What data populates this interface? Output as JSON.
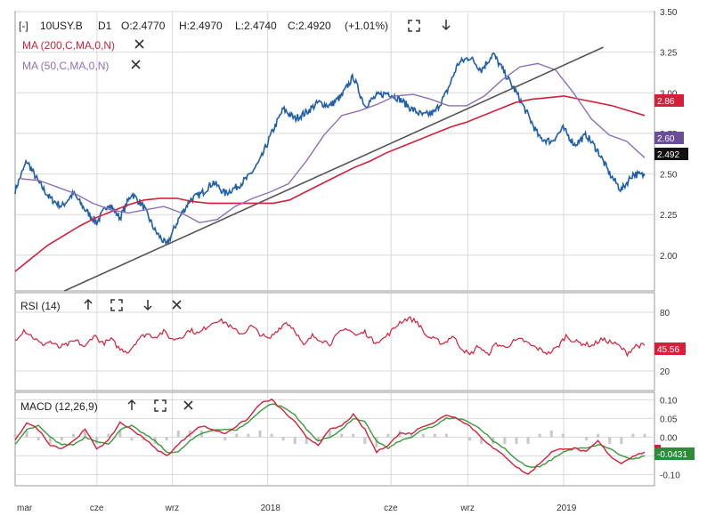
{
  "colors": {
    "price": "#1f5fa8",
    "ma200": "#d6203a",
    "ma50": "#8d6fb8",
    "trend": "#555555",
    "rsi": "#d6203a",
    "macd": "#d6203a",
    "signal": "#3a9a3a",
    "hist": "#c8c8c8",
    "grid": "#d8d8d8",
    "panel_border": "#9a9a9a"
  },
  "toolbar": {
    "collapse_label": "[-]",
    "instrument": "10USY.B",
    "timeframe": "D1",
    "open": "O:2.4770",
    "high": "H:2.4970",
    "low": "L:2.4740",
    "close": "C:2.4920",
    "change": "(+1.01%)",
    "expand_icon": "expand-icon",
    "download_icon": "arrow-down-icon"
  },
  "indicators": {
    "ma200_label": "MA (200,C,MA,0,N)",
    "ma50_label": "MA (50,C,MA,0,N)",
    "close_icon": "close-icon"
  },
  "rsi_panel": {
    "label": "RSI (14)",
    "value_badge": "45.56"
  },
  "macd_panel": {
    "label": "MACD (12,26,9)",
    "value_badge": "-0.0431"
  },
  "badges": {
    "ma200": "2.86",
    "ma50": "2.60",
    "last": "2.492"
  },
  "chart_data": [
    {
      "type": "line",
      "panel": "price",
      "x_labels": [
        "mar",
        "cze",
        "wrz",
        "2018",
        "cze",
        "wrz",
        "2019"
      ],
      "y_ticks": [
        "3.50",
        "3.25",
        "3.00",
        "2.75",
        "2.50",
        "2.25",
        "2.00"
      ],
      "ylim": [
        1.78,
        3.5
      ],
      "series": [
        {
          "name": "10USY.B",
          "values": [
            2.4,
            2.58,
            2.45,
            2.35,
            2.3,
            2.38,
            2.28,
            2.2,
            2.32,
            2.23,
            2.38,
            2.3,
            2.15,
            2.06,
            2.22,
            2.34,
            2.38,
            2.45,
            2.38,
            2.42,
            2.48,
            2.58,
            2.75,
            2.9,
            2.84,
            2.88,
            2.94,
            2.92,
            2.98,
            3.1,
            2.92,
            2.98,
            3.0,
            2.96,
            2.9,
            2.86,
            2.88,
            3.0,
            3.18,
            3.22,
            3.14,
            3.24,
            3.12,
            3.0,
            2.86,
            2.72,
            2.7,
            2.78,
            2.68,
            2.74,
            2.64,
            2.5,
            2.4,
            2.5,
            2.49
          ]
        },
        {
          "name": "MA (200,C,MA,0,N)",
          "values": [
            1.9,
            1.98,
            2.06,
            2.12,
            2.18,
            2.23,
            2.27,
            2.31,
            2.34,
            2.35,
            2.35,
            2.33,
            2.32,
            2.32,
            2.32,
            2.32,
            2.32,
            2.34,
            2.39,
            2.44,
            2.49,
            2.54,
            2.58,
            2.63,
            2.67,
            2.71,
            2.75,
            2.79,
            2.82,
            2.86,
            2.9,
            2.94,
            2.96,
            2.97,
            2.98,
            2.96,
            2.94,
            2.92,
            2.89,
            2.86
          ]
        },
        {
          "name": "MA (50,C,MA,0,N)",
          "values": [
            2.47,
            2.46,
            2.42,
            2.38,
            2.32,
            2.28,
            2.26,
            2.28,
            2.3,
            2.26,
            2.2,
            2.22,
            2.3,
            2.35,
            2.39,
            2.44,
            2.58,
            2.74,
            2.86,
            2.89,
            2.93,
            2.98,
            2.99,
            2.96,
            2.92,
            2.92,
            2.98,
            3.08,
            3.16,
            3.18,
            3.14,
            3.0,
            2.84,
            2.74,
            2.7,
            2.6
          ]
        },
        {
          "name": "trendline",
          "points": [
            [
              0.077,
              1.78
            ],
            [
              0.92,
              3.28
            ]
          ]
        }
      ]
    },
    {
      "type": "line",
      "panel": "rsi",
      "title": "RSI (14)",
      "y_ticks": [
        "80",
        "20"
      ],
      "ylim": [
        0,
        100
      ],
      "series": [
        {
          "name": "RSI (14)",
          "values": [
            52,
            62,
            55,
            47,
            50,
            44,
            47,
            51,
            44,
            57,
            48,
            52,
            42,
            40,
            52,
            58,
            55,
            60,
            52,
            55,
            62,
            58,
            66,
            72,
            70,
            62,
            58,
            66,
            58,
            52,
            62,
            70,
            62,
            45,
            56,
            52,
            48,
            58,
            64,
            56,
            60,
            50,
            52,
            60,
            70,
            74,
            70,
            56,
            52,
            48,
            56,
            44,
            36,
            46,
            36,
            48,
            44,
            50,
            52,
            46,
            42,
            38,
            44,
            56,
            50,
            48,
            46,
            52,
            50,
            46,
            38,
            46,
            46
          ]
        }
      ]
    },
    {
      "type": "line",
      "panel": "macd",
      "title": "MACD (12,26,9)",
      "y_ticks": [
        "0.10",
        "0.05",
        "0.00",
        "-0.05",
        "-0.10"
      ],
      "ylim": [
        -0.13,
        0.12
      ],
      "series": [
        {
          "name": "MACD",
          "values": [
            -0.01,
            0.04,
            0.02,
            -0.02,
            -0.03,
            -0.01,
            0.02,
            -0.03,
            -0.01,
            0.04,
            0.02,
            0.0,
            -0.03,
            -0.05,
            -0.02,
            0.01,
            0.03,
            0.02,
            0.01,
            0.03,
            0.05,
            0.09,
            0.1,
            0.07,
            0.04,
            0.0,
            -0.02,
            0.02,
            0.03,
            0.06,
            0.02,
            -0.04,
            -0.02,
            0.01,
            0.01,
            0.03,
            0.04,
            0.06,
            0.05,
            0.03,
            0.0,
            -0.03,
            -0.05,
            -0.08,
            -0.1,
            -0.07,
            -0.04,
            -0.03,
            -0.03,
            -0.04,
            -0.01,
            -0.05,
            -0.07,
            -0.05,
            -0.04
          ]
        },
        {
          "name": "Signal",
          "values": [
            -0.02,
            0.02,
            0.03,
            0.0,
            -0.02,
            -0.02,
            0.0,
            -0.01,
            -0.02,
            0.02,
            0.03,
            0.01,
            -0.01,
            -0.04,
            -0.04,
            -0.01,
            0.01,
            0.02,
            0.02,
            0.02,
            0.04,
            0.07,
            0.09,
            0.08,
            0.06,
            0.02,
            -0.01,
            0.0,
            0.02,
            0.05,
            0.04,
            -0.01,
            -0.03,
            -0.01,
            0.0,
            0.02,
            0.03,
            0.05,
            0.05,
            0.04,
            0.02,
            -0.01,
            -0.03,
            -0.06,
            -0.08,
            -0.08,
            -0.06,
            -0.04,
            -0.03,
            -0.03,
            -0.02,
            -0.03,
            -0.05,
            -0.06,
            -0.05
          ]
        }
      ]
    }
  ]
}
